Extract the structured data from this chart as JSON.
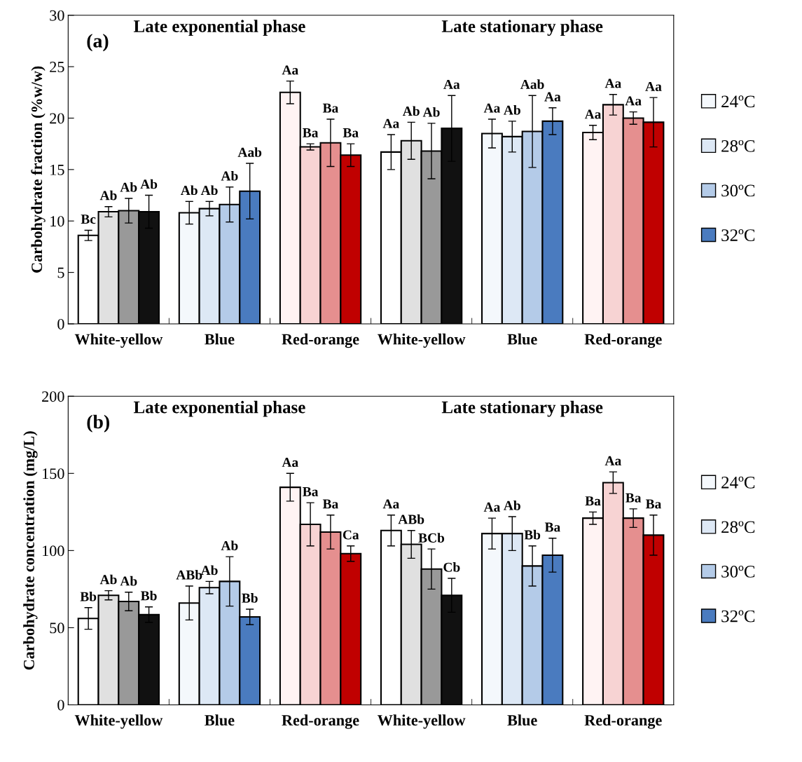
{
  "chart_data": [
    {
      "type": "bar",
      "title": "(a)",
      "ylabel": "Carbohydrate fraction (%w/w)",
      "categories": [
        "White-yellow",
        "Blue",
        "Red-orange",
        "White-yellow",
        "Blue",
        "Red-orange"
      ],
      "annotations": [
        "Late exponential phase",
        "Late stationary phase"
      ],
      "ylim": [
        0,
        30
      ],
      "yticks": [
        0,
        5,
        10,
        15,
        20,
        25,
        30
      ],
      "grid": false,
      "legend": "right",
      "series": [
        {
          "name": "24ºC",
          "color": "#f4f8fc",
          "colors": [
            "#ffffff",
            "#f4f8fc",
            "#fff3f3",
            "#ffffff",
            "#f4f8fc",
            "#fff3f3"
          ],
          "values": [
            8.6,
            10.8,
            22.5,
            16.7,
            18.5,
            18.6
          ],
          "errors": [
            0.5,
            1.1,
            1.1,
            1.7,
            1.4,
            0.7
          ],
          "value_labels": [
            "Bc",
            "Ab",
            "Aa",
            "Aa",
            "Aa",
            "Aa"
          ]
        },
        {
          "name": "28ºC",
          "color": "#dde8f5",
          "colors": [
            "#e0e0e0",
            "#dde8f5",
            "#f7d3d3",
            "#e0e0e0",
            "#dde8f5",
            "#f7d3d3"
          ],
          "values": [
            10.9,
            11.2,
            17.2,
            17.8,
            18.2,
            21.3
          ],
          "errors": [
            0.5,
            0.7,
            0.3,
            1.8,
            1.5,
            1.0
          ],
          "value_labels": [
            "Ab",
            "Ab",
            "Ba",
            "Ab",
            "Ab",
            "Aa"
          ]
        },
        {
          "name": "30ºC",
          "color": "#b4cbe8",
          "colors": [
            "#999999",
            "#b4cbe8",
            "#e58f8f",
            "#999999",
            "#b4cbe8",
            "#e58f8f"
          ],
          "values": [
            11.0,
            11.6,
            17.6,
            16.8,
            18.7,
            20.0
          ],
          "errors": [
            1.2,
            1.7,
            2.3,
            2.7,
            3.5,
            0.6
          ],
          "value_labels": [
            "Ab",
            "Ab",
            "Ba",
            "Ab",
            "Aab",
            "Aa"
          ]
        },
        {
          "name": "32ºC",
          "color": "#4a7bbf",
          "colors": [
            "#111111",
            "#4a7bbf",
            "#c00000",
            "#111111",
            "#4a7bbf",
            "#c00000"
          ],
          "values": [
            10.9,
            12.9,
            16.4,
            19.0,
            19.7,
            19.6
          ],
          "errors": [
            1.6,
            2.7,
            1.1,
            3.2,
            1.3,
            2.4
          ],
          "value_labels": [
            "Ab",
            "Aab",
            "Ba",
            "Aa",
            "Aa",
            "Aa"
          ]
        }
      ]
    },
    {
      "type": "bar",
      "title": "(b)",
      "ylabel": "Carbohydrate concentration (mg/L)",
      "categories": [
        "White-yellow",
        "Blue",
        "Red-orange",
        "White-yellow",
        "Blue",
        "Red-orange"
      ],
      "annotations": [
        "Late exponential phase",
        "Late stationary phase"
      ],
      "ylim": [
        0,
        200
      ],
      "yticks": [
        0,
        50,
        100,
        150,
        200
      ],
      "grid": false,
      "legend": "right",
      "series": [
        {
          "name": "24ºC",
          "color": "#f4f8fc",
          "colors": [
            "#ffffff",
            "#f4f8fc",
            "#fff3f3",
            "#ffffff",
            "#f4f8fc",
            "#fff3f3"
          ],
          "values": [
            56,
            66,
            141,
            113,
            111,
            121
          ],
          "errors": [
            7,
            11,
            9,
            10,
            10,
            4
          ],
          "value_labels": [
            "Bb",
            "ABb",
            "Aa",
            "Aa",
            "Aa",
            "Ba"
          ]
        },
        {
          "name": "28ºC",
          "color": "#dde8f5",
          "colors": [
            "#e0e0e0",
            "#dde8f5",
            "#f7d3d3",
            "#e0e0e0",
            "#dde8f5",
            "#f7d3d3"
          ],
          "values": [
            71,
            76,
            117,
            104,
            111,
            144
          ],
          "errors": [
            3,
            4,
            14,
            9,
            11,
            7
          ],
          "value_labels": [
            "Ab",
            "Ab",
            "Ba",
            "ABb",
            "Ab",
            "Aa"
          ]
        },
        {
          "name": "30ºC",
          "color": "#b4cbe8",
          "colors": [
            "#999999",
            "#b4cbe8",
            "#e58f8f",
            "#999999",
            "#b4cbe8",
            "#e58f8f"
          ],
          "values": [
            67,
            80,
            112,
            88,
            90,
            121
          ],
          "errors": [
            6,
            16,
            11,
            13,
            13,
            6
          ],
          "value_labels": [
            "Ab",
            "Ab",
            "Ba",
            "BCb",
            "Bb",
            "Ba"
          ]
        },
        {
          "name": "32ºC",
          "color": "#4a7bbf",
          "colors": [
            "#111111",
            "#4a7bbf",
            "#c00000",
            "#111111",
            "#4a7bbf",
            "#c00000"
          ],
          "values": [
            58.5,
            57,
            98,
            71,
            97,
            110
          ],
          "errors": [
            5,
            5,
            5,
            11,
            11,
            13
          ],
          "value_labels": [
            "Bb",
            "Bb",
            "Ca",
            "Cb",
            "Ba",
            "Ba"
          ]
        }
      ]
    }
  ]
}
